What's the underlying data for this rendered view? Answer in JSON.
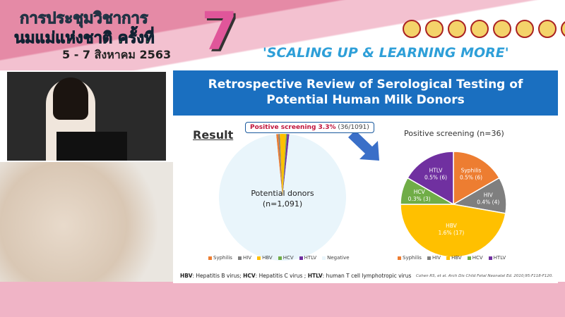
{
  "banner": {
    "line1": "การประชุมวิชาการ",
    "line2": "นมแม่แห่งชาติ ครั้งที่",
    "number": "7",
    "dates": "5 - 7 สิงหาคม 2563",
    "slogan": "'SCALING UP & LEARNING MORE'",
    "logos": [
      "logo-1",
      "logo-2",
      "logo-3",
      "logo-4",
      "logo-5",
      "logo-6",
      "logo-7",
      "logo-sss"
    ]
  },
  "slide": {
    "title_line1": "Retrospective Review of Serological Testing of",
    "title_line2": "Potential Human Milk Donors",
    "result_label": "Result",
    "callout_bold": "Positive screening 3.3%",
    "callout_rest": "(36/1091)",
    "footnote": {
      "a": "HBV",
      "a_t": ": Hepatitis B virus; ",
      "b": "HCV",
      "b_t": ": Hepatitis C virus ; ",
      "c": "HTLV",
      "c_t": ": human T cell lymphotropic virus"
    },
    "citation": "Cohen RS, et al. Arch Dis Child Fetal Neonatal Ed. 2010;95:F118-F120."
  },
  "chart_data": [
    {
      "type": "pie",
      "title": "",
      "center_label": "Potential donors",
      "center_sub": "(n=1,091)",
      "categories": [
        "Syphilis",
        "HIV",
        "HBV",
        "HCV",
        "HTLV",
        "Negative"
      ],
      "values": [
        6,
        4,
        17,
        3,
        6,
        1055
      ],
      "colors": [
        "#ed7d31",
        "#7f7f7f",
        "#ffc000",
        "#70ad47",
        "#7030a0",
        "#e9f5fb"
      ],
      "legend_placement": "bottom"
    },
    {
      "type": "pie",
      "title": "Positive screening (n=36)",
      "categories": [
        "Syphilis",
        "HIV",
        "HBV",
        "HCV",
        "HTLV"
      ],
      "values": [
        6,
        4,
        17,
        3,
        6
      ],
      "labels": [
        "0.5% (6)",
        "0.4% (4)",
        "1.6% (17)",
        "0.3% (3)",
        "0.5% (6)"
      ],
      "colors": [
        "#ed7d31",
        "#7f7f7f",
        "#ffc000",
        "#70ad47",
        "#7030a0"
      ],
      "legend_placement": "bottom"
    }
  ]
}
